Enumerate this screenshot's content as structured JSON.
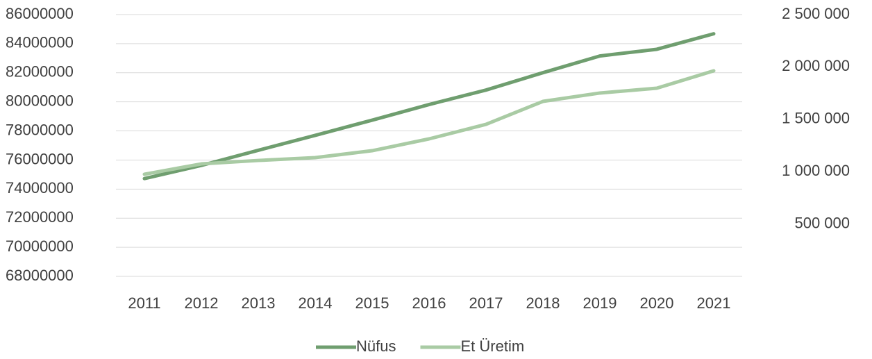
{
  "chart_data": {
    "type": "line",
    "categories": [
      "2011",
      "2012",
      "2013",
      "2014",
      "2015",
      "2016",
      "2017",
      "2018",
      "2019",
      "2020",
      "2021"
    ],
    "series": [
      {
        "name": "Nüfus",
        "color": "#6f9e6f",
        "axis": "y",
        "values": [
          74724269,
          75627384,
          76667864,
          77695904,
          78741053,
          79814871,
          80810525,
          82003882,
          83154997,
          83614362,
          84680273
        ]
      },
      {
        "name": "Et Üretim",
        "color": "#a9cba4",
        "axis": "y2",
        "values": [
          975000,
          1074000,
          1107000,
          1134000,
          1200000,
          1313000,
          1452000,
          1671000,
          1751000,
          1797000,
          1963000
        ]
      }
    ],
    "ylim": [
      68000000,
      86000000
    ],
    "yticks": [
      68000000,
      70000000,
      72000000,
      74000000,
      76000000,
      78000000,
      80000000,
      82000000,
      84000000,
      86000000
    ],
    "y2lim": [
      0,
      2500000
    ],
    "y2ticks": [
      {
        "value": 500000,
        "label": "500 000"
      },
      {
        "value": 1000000,
        "label": "1 000 000"
      },
      {
        "value": 1500000,
        "label": "1 500 000"
      },
      {
        "value": 2000000,
        "label": "2 000 000"
      },
      {
        "value": 2500000,
        "label": "2 500 000"
      }
    ],
    "grid": true,
    "legend": "bottom"
  }
}
